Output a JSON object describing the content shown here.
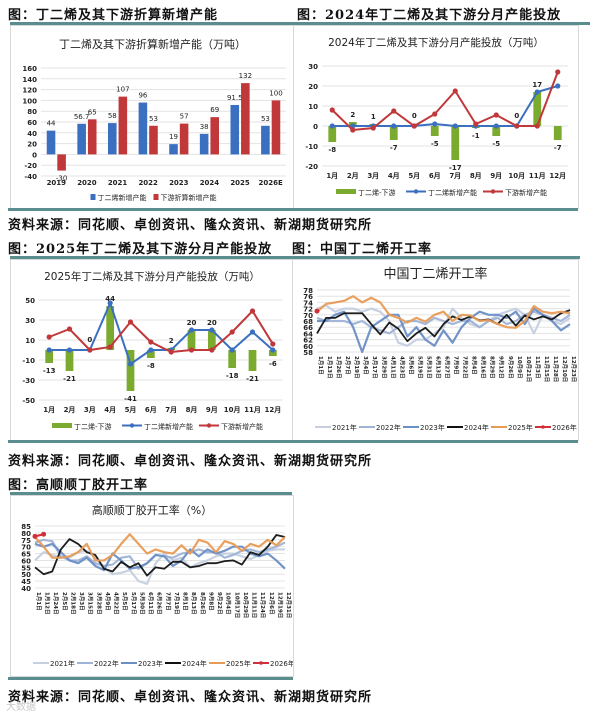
{
  "captions": {
    "fig1": "图：丁二烯及其下游折算新增产能",
    "fig2": "图：2024年丁二烯及其下游分月产能投放",
    "fig3": "图：2025年丁二烯及其下游分月产能投放",
    "fig4": "图：中国丁二烯开工率",
    "fig5": "图：高顺顺丁胶开工率",
    "source1": "资料来源：同花顺、卓创资讯、隆众资讯、新湖期货研究所",
    "source2": "资料来源：同花顺、卓创资讯、隆众资讯、新湖期货研究所",
    "source3": "资料来源：同花顺、卓创资讯、隆众资讯、新湖期货研究所",
    "watermark": "大数据"
  },
  "colors": {
    "rule": "#5a8e8e",
    "blue": "#3b6fbf",
    "red": "#c0383a",
    "green": "#7aab2e",
    "black": "#111111",
    "orange": "#e89b55",
    "y2021": "#c5cfe0",
    "y2022": "#9fb3d6",
    "y2023": "#6b8ec4"
  },
  "chart_data": [
    {
      "id": "fig1",
      "type": "bar",
      "title": "丁二烯及其下游折算新增产能（万吨）",
      "categories": [
        "2019",
        "2020",
        "2021",
        "2022",
        "2023",
        "2024",
        "2025",
        "2026E"
      ],
      "series": [
        {
          "name": "丁二烯新增产能",
          "color": "#3b6fbf",
          "values": [
            44,
            56.7,
            58,
            96,
            19,
            38,
            91.5,
            53
          ]
        },
        {
          "name": "下游折算新增产能",
          "color": "#c0383a",
          "values": [
            -30,
            65,
            107,
            53,
            57,
            69,
            132,
            100
          ]
        }
      ],
      "yticks": [
        160,
        140,
        120,
        100,
        80,
        60,
        40,
        20,
        0,
        -20,
        -40
      ],
      "ylim": [
        -40,
        160
      ],
      "legend_position": "bottom",
      "grid": true
    },
    {
      "id": "fig2",
      "type": "bar+line",
      "title": "2024年丁二烯及其下游分月产能投放（万吨）",
      "categories": [
        "1月",
        "2月",
        "3月",
        "4月",
        "5月",
        "6月",
        "7月",
        "8月",
        "9月",
        "10月",
        "11月",
        "12月"
      ],
      "series": [
        {
          "name": "丁二烯-下游",
          "kind": "bar",
          "color": "#7aab2e",
          "values": [
            -8,
            2,
            1,
            -7,
            0,
            -5,
            -17,
            -1,
            -5,
            0,
            17,
            -7
          ]
        },
        {
          "name": "丁二烯新增产能",
          "kind": "line",
          "color": "#3b6fbf",
          "values": [
            0,
            0,
            0,
            0,
            0,
            1,
            0,
            0,
            0,
            0,
            17,
            20
          ]
        },
        {
          "name": "下游新增产能",
          "kind": "line",
          "color": "#c0383a",
          "values": [
            8,
            -2,
            -1,
            7.5,
            0,
            6,
            17.5,
            1,
            5.5,
            0,
            0,
            27
          ]
        }
      ],
      "labels": [
        "-8",
        "2",
        "1",
        "-7",
        "0",
        "-5",
        "-17",
        "-1",
        "-5",
        "0",
        "17",
        "-7"
      ],
      "yticks": [
        30,
        20,
        10,
        0,
        -10,
        -20
      ],
      "ylim": [
        -20,
        30
      ],
      "legend_position": "bottom",
      "grid": true
    },
    {
      "id": "fig3",
      "type": "bar+line",
      "title": "2025年丁二烯及其下游分月产能投放（万吨）",
      "categories": [
        "1月",
        "2月",
        "3月",
        "4月",
        "5月",
        "6月",
        "7月",
        "8月",
        "9月",
        "10月",
        "11月",
        "12月"
      ],
      "series": [
        {
          "name": "丁二烯-下游",
          "kind": "bar",
          "color": "#7aab2e",
          "values": [
            -13,
            -21,
            0,
            44,
            -41,
            -8,
            2,
            20,
            20,
            -18,
            -21,
            -6
          ]
        },
        {
          "name": "丁二烯新增产能",
          "kind": "line",
          "color": "#3b6fbf",
          "values": [
            0,
            0,
            0,
            47,
            -14,
            0,
            0,
            20,
            20,
            0,
            18,
            0
          ]
        },
        {
          "name": "下游新增产能",
          "kind": "line",
          "color": "#c0383a",
          "values": [
            13,
            21,
            0,
            3,
            28,
            8,
            -2,
            0,
            0,
            18,
            39,
            6
          ]
        }
      ],
      "labels": [
        "-13",
        "-21",
        "0",
        "44",
        "-41",
        "-8",
        "2",
        "20",
        "20",
        "-18",
        "-21",
        "-6"
      ],
      "yticks": [
        50,
        30,
        10,
        -10,
        -30,
        -50
      ],
      "ylim": [
        -50,
        50
      ],
      "legend_position": "bottom",
      "grid": true
    },
    {
      "id": "fig4",
      "type": "line",
      "title": "中国丁二烯开工率",
      "x": [
        "1月1日",
        "1月13日",
        "1月26日",
        "2月7日",
        "2月19日",
        "3月4日",
        "3月17日",
        "3月29日",
        "4月11日",
        "4月23日",
        "5月6日",
        "5月19日",
        "5月31日",
        "6月13日",
        "6月27日",
        "7月9日",
        "7月22日",
        "8月4日",
        "8月16日",
        "8月29日",
        "9月12日",
        "9月26日",
        "10月9日",
        "10月21日",
        "11月3日",
        "11月15日",
        "11月28日",
        "12月10日",
        "12月23日"
      ],
      "series": [
        {
          "name": "2021年",
          "color": "#c5cfe0",
          "values": [
            72,
            73,
            71,
            72,
            72,
            71,
            72,
            71,
            68,
            61,
            60,
            62,
            62,
            64,
            66,
            72,
            69,
            67,
            66,
            68,
            70,
            71,
            72,
            70,
            64,
            70,
            68,
            67,
            69
          ]
        },
        {
          "name": "2022年",
          "color": "#9fb3d6",
          "values": [
            69,
            68,
            68,
            68,
            67,
            68,
            66,
            65,
            64,
            66,
            68,
            68,
            67,
            69,
            68,
            67,
            68,
            68,
            66,
            68,
            69,
            67,
            68,
            70,
            71,
            70,
            69,
            68,
            70
          ]
        },
        {
          "name": "2023年",
          "color": "#6b8ec4",
          "values": [
            68,
            68,
            70,
            71,
            66,
            58,
            66,
            68,
            70,
            70,
            63,
            66,
            62,
            60,
            65,
            61,
            66,
            69,
            71,
            70,
            70,
            69,
            71,
            67,
            72,
            70,
            68,
            65,
            67
          ]
        },
        {
          "name": "2024年",
          "color": "#111111",
          "values": [
            64,
            69,
            69,
            70.5,
            70.5,
            70.5,
            67,
            63.7,
            67.5,
            65.5,
            61.5,
            64,
            65.8,
            63,
            67,
            69.5,
            68.3,
            69.5,
            68.2,
            68.5,
            67,
            70,
            66.5,
            69.8,
            68.5,
            69.5,
            68.5,
            70.5,
            71.5
          ]
        },
        {
          "name": "2025年",
          "color": "#e89b55",
          "values": [
            71,
            73.5,
            74,
            74.5,
            76,
            74,
            75.5,
            74,
            70,
            69,
            67.5,
            69,
            67.8,
            70,
            71,
            68,
            70,
            69.8,
            68,
            68.3,
            67,
            66,
            65.8,
            68,
            72.8,
            71,
            70.5,
            71,
            70.5
          ]
        },
        {
          "name": "2026年",
          "color": "#d0303a",
          "values": [
            71.2
          ]
        }
      ],
      "yticks": [
        78,
        76,
        74,
        72,
        70,
        68,
        66,
        64,
        62,
        60,
        58
      ],
      "ylim": [
        58,
        78
      ],
      "legend_position": "bottom",
      "grid": true
    },
    {
      "id": "fig5",
      "type": "line",
      "title": "高顺顺丁胶开工率（%）",
      "x": [
        "1月1日",
        "1月12日",
        "1月24日",
        "2月5日",
        "2月18日",
        "3月3日",
        "3月15日",
        "3月28日",
        "4月9日",
        "4月22日",
        "5月5日",
        "5月17日",
        "5月30日",
        "6月11日",
        "6月26日",
        "7月7日",
        "7月19日",
        "8月1日",
        "8月13日",
        "8月26日",
        "9月8日",
        "9月22日",
        "10月4日",
        "10月17日",
        "10月29日",
        "11月11日",
        "11月24日",
        "12月6日",
        "12月19日",
        "12月31日"
      ],
      "series": [
        {
          "name": "2021年",
          "color": "#c5cfe0",
          "values": [
            60,
            66,
            64,
            62,
            62,
            66,
            67,
            62,
            55,
            50,
            51,
            53,
            45,
            43,
            58,
            65,
            60,
            62,
            55,
            58,
            60,
            63,
            65,
            65,
            63,
            61,
            64,
            67,
            68,
            68
          ]
        },
        {
          "name": "2022年",
          "color": "#9fb3d6",
          "values": [
            73,
            75,
            74,
            63,
            60,
            60,
            63,
            58,
            56,
            57,
            62,
            63,
            54,
            58,
            64,
            63,
            62,
            65,
            66,
            68,
            66,
            66,
            62,
            64,
            67,
            68,
            66,
            68,
            70,
            73
          ]
        },
        {
          "name": "2023年",
          "color": "#6b8ec4",
          "values": [
            72,
            70,
            72,
            66,
            60,
            58,
            62,
            56,
            53,
            65,
            60,
            54,
            55,
            58,
            64,
            63,
            56,
            60,
            68,
            63,
            68,
            65,
            67,
            70,
            70,
            65,
            63,
            65,
            60,
            54
          ]
        },
        {
          "name": "2024年",
          "color": "#111111",
          "values": [
            55,
            50,
            52,
            68,
            75.5,
            72,
            66,
            64,
            54,
            52,
            59,
            55,
            58,
            49,
            55,
            54,
            59,
            59,
            55,
            56,
            58,
            58,
            59.5,
            60,
            57,
            66,
            64,
            70,
            78.5,
            77
          ]
        },
        {
          "name": "2025年",
          "color": "#e89b55",
          "values": [
            77,
            70,
            62,
            62,
            63,
            66,
            72,
            60,
            60,
            64,
            72,
            79,
            72,
            65,
            68,
            66,
            65,
            71,
            65,
            75,
            73,
            66,
            74,
            72,
            67,
            72,
            70,
            75,
            71,
            77
          ]
        },
        {
          "name": "2026年",
          "color": "#d0303a",
          "values": [
            77.5,
            79
          ]
        }
      ],
      "yticks": [
        85,
        80,
        75,
        70,
        65,
        60,
        55,
        50,
        45,
        40
      ],
      "ylim": [
        40,
        85
      ],
      "legend_position": "bottom",
      "grid": true
    }
  ]
}
